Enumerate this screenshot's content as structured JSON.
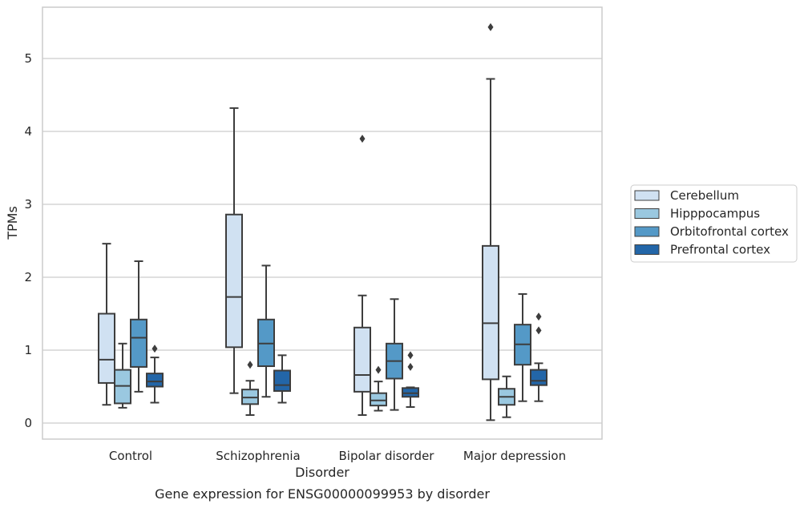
{
  "chart_data": {
    "type": "box",
    "title": "",
    "caption": "Gene expression for ENSG00000099953 by disorder",
    "xlabel": "Disorder",
    "ylabel": "TPMs",
    "ylim": [
      -0.22,
      5.72
    ],
    "yticks": [
      0,
      1,
      2,
      3,
      4,
      5
    ],
    "grid": true,
    "legend_placement": "right",
    "categories": [
      "Control",
      "Schizophrenia",
      "Bipolar disorder",
      "Major depression"
    ],
    "series": [
      {
        "name": "Cerebellum",
        "color": "#d0e1f2",
        "boxes": [
          {
            "whisker_low": 0.25,
            "q1": 0.55,
            "median": 0.87,
            "q3": 1.5,
            "whisker_high": 2.46,
            "outliers": []
          },
          {
            "whisker_low": 0.41,
            "q1": 1.04,
            "median": 1.73,
            "q3": 2.86,
            "whisker_high": 4.32,
            "outliers": []
          },
          {
            "whisker_low": 0.11,
            "q1": 0.43,
            "median": 0.66,
            "q3": 1.31,
            "whisker_high": 1.75,
            "outliers": [
              3.9
            ]
          },
          {
            "whisker_low": 0.04,
            "q1": 0.6,
            "median": 1.37,
            "q3": 2.43,
            "whisker_high": 4.72,
            "outliers": [
              5.43
            ]
          }
        ]
      },
      {
        "name": "Hipppocampus",
        "color": "#9ac8e0",
        "boxes": [
          {
            "whisker_low": 0.21,
            "q1": 0.27,
            "median": 0.51,
            "q3": 0.73,
            "whisker_high": 1.09,
            "outliers": []
          },
          {
            "whisker_low": 0.11,
            "q1": 0.26,
            "median": 0.35,
            "q3": 0.46,
            "whisker_high": 0.58,
            "outliers": [
              0.8
            ]
          },
          {
            "whisker_low": 0.17,
            "q1": 0.24,
            "median": 0.31,
            "q3": 0.41,
            "whisker_high": 0.57,
            "outliers": [
              0.73
            ]
          },
          {
            "whisker_low": 0.08,
            "q1": 0.25,
            "median": 0.36,
            "q3": 0.47,
            "whisker_high": 0.64,
            "outliers": []
          }
        ]
      },
      {
        "name": "Orbitofrontal cortex",
        "color": "#5499c7",
        "boxes": [
          {
            "whisker_low": 0.43,
            "q1": 0.77,
            "median": 1.17,
            "q3": 1.42,
            "whisker_high": 2.22,
            "outliers": []
          },
          {
            "whisker_low": 0.36,
            "q1": 0.78,
            "median": 1.09,
            "q3": 1.42,
            "whisker_high": 2.16,
            "outliers": []
          },
          {
            "whisker_low": 0.18,
            "q1": 0.61,
            "median": 0.85,
            "q3": 1.09,
            "whisker_high": 1.7,
            "outliers": []
          },
          {
            "whisker_low": 0.3,
            "q1": 0.8,
            "median": 1.08,
            "q3": 1.35,
            "whisker_high": 1.77,
            "outliers": []
          }
        ]
      },
      {
        "name": "Prefrontal cortex",
        "color": "#2366a8",
        "boxes": [
          {
            "whisker_low": 0.28,
            "q1": 0.5,
            "median": 0.57,
            "q3": 0.68,
            "whisker_high": 0.9,
            "outliers": [
              1.02
            ]
          },
          {
            "whisker_low": 0.28,
            "q1": 0.44,
            "median": 0.52,
            "q3": 0.72,
            "whisker_high": 0.93,
            "outliers": []
          },
          {
            "whisker_low": 0.22,
            "q1": 0.36,
            "median": 0.41,
            "q3": 0.48,
            "whisker_high": 0.49,
            "outliers": [
              0.77,
              0.93
            ]
          },
          {
            "whisker_low": 0.3,
            "q1": 0.52,
            "median": 0.58,
            "q3": 0.73,
            "whisker_high": 0.82,
            "outliers": [
              1.27,
              1.46
            ]
          }
        ]
      }
    ]
  }
}
